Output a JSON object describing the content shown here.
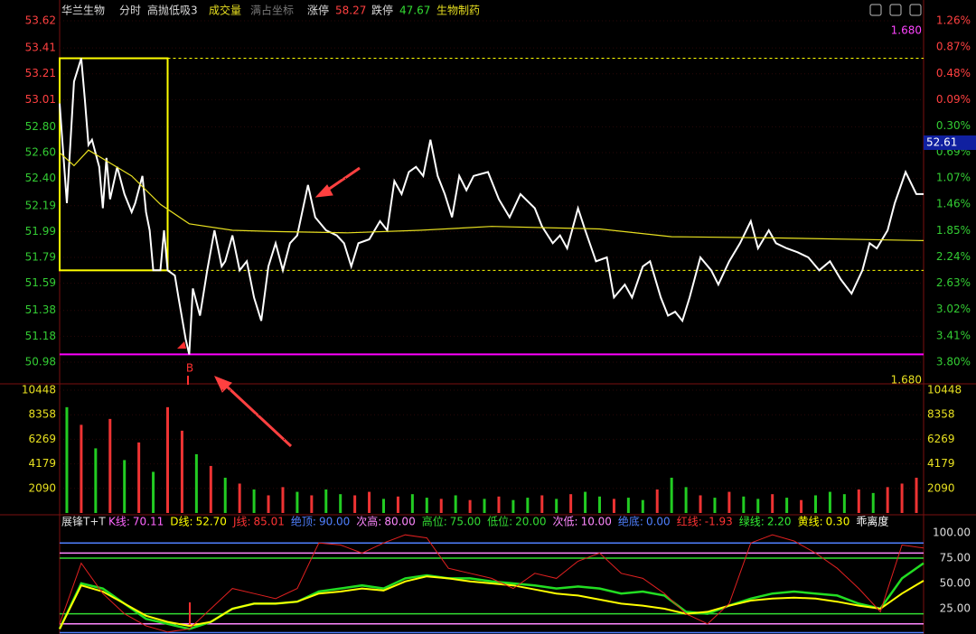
{
  "header": {
    "name": "华兰生物",
    "mode": "分时",
    "indicator": "高抛低吸3",
    "volume": "成交量",
    "coords": "满占坐标",
    "limit_up_label": "涨停",
    "limit_up": "58.27",
    "limit_down_label": "跌停",
    "limit_down": "47.67",
    "sector": "生物制药"
  },
  "chart_data": [
    {
      "type": "line",
      "xlim": [
        0,
        240
      ],
      "ylim": [
        50.98,
        53.62
      ],
      "yticks": [
        53.62,
        53.41,
        53.21,
        53.01,
        {
          "value": 52.8,
          "label": "52.80"
        },
        {
          "value": 52.6,
          "label": "52.60"
        },
        {
          "value": 52.4,
          "label": "52.40"
        },
        52.19,
        51.99,
        51.79,
        51.59,
        51.38,
        51.18,
        50.98
      ],
      "y2lim": [
        -3.8,
        1.26
      ],
      "y2ticks": [
        {
          "value": 1.26,
          "label": "1.26%"
        },
        {
          "value": 0.87,
          "label": "0.87%"
        },
        {
          "value": 0.48,
          "label": "0.48%"
        },
        {
          "value": 0.09,
          "label": "0.09%"
        },
        {
          "value": -0.3,
          "label": "0.30%"
        },
        {
          "value": -0.69,
          "label": "0.69%"
        },
        {
          "value": -1.07,
          "label": "1.07%"
        },
        {
          "value": -1.46,
          "label": "1.46%"
        },
        {
          "value": -1.85,
          "label": "1.85%"
        },
        {
          "value": -2.24,
          "label": "2.24%"
        },
        {
          "value": -2.63,
          "label": "2.63%"
        },
        {
          "value": -3.02,
          "label": "3.02%"
        },
        {
          "value": -3.41,
          "label": "3.41%"
        },
        {
          "value": -3.8,
          "label": "3.80%"
        }
      ],
      "series": [
        {
          "color": "#ffffff",
          "x": [
            0,
            2,
            4,
            6,
            7,
            8,
            9,
            11,
            12,
            13,
            14,
            16,
            18,
            20,
            21,
            23,
            24,
            25,
            26,
            28,
            29,
            30,
            32,
            33,
            35,
            36,
            37,
            39,
            41,
            43,
            45,
            46,
            48,
            50,
            52,
            54,
            56,
            58,
            60,
            62,
            64,
            66,
            69,
            71,
            74,
            77,
            79,
            81,
            83,
            86,
            89,
            91,
            93,
            95,
            97,
            99,
            101,
            103,
            105,
            107,
            109,
            111,
            113,
            115,
            119,
            122,
            125,
            128,
            132,
            134,
            137,
            139,
            141,
            144,
            146,
            149,
            152,
            154,
            157,
            159,
            162,
            164,
            167,
            169,
            171,
            173,
            175,
            178,
            181,
            183,
            186,
            189,
            192,
            194,
            197,
            199,
            202,
            205,
            208,
            211,
            214,
            217,
            220,
            223,
            225,
            227,
            230,
            232,
            235,
            238,
            240
          ],
          "values": [
            52.98,
            52.21,
            53.15,
            53.33,
            53.01,
            52.66,
            52.7,
            52.49,
            52.17,
            52.56,
            52.24,
            52.49,
            52.28,
            52.14,
            52.21,
            52.42,
            52.14,
            52.0,
            51.69,
            51.69,
            52.0,
            51.69,
            51.65,
            51.48,
            51.16,
            51.04,
            51.55,
            51.34,
            51.69,
            52.0,
            51.72,
            51.76,
            51.96,
            51.69,
            51.76,
            51.48,
            51.3,
            51.72,
            51.9,
            51.69,
            51.9,
            51.96,
            52.35,
            52.1,
            52.0,
            51.96,
            51.9,
            51.72,
            51.9,
            51.93,
            52.07,
            52.0,
            52.38,
            52.28,
            52.45,
            52.49,
            52.42,
            52.7,
            52.42,
            52.28,
            52.1,
            52.42,
            52.31,
            52.42,
            52.45,
            52.24,
            52.1,
            52.28,
            52.17,
            52.03,
            51.9,
            51.96,
            51.86,
            52.17,
            52.0,
            51.76,
            51.79,
            51.48,
            51.58,
            51.48,
            51.72,
            51.76,
            51.48,
            51.34,
            51.37,
            51.3,
            51.48,
            51.79,
            51.69,
            51.58,
            51.76,
            51.9,
            52.07,
            51.86,
            52.0,
            51.9,
            51.86,
            51.83,
            51.79,
            51.69,
            51.76,
            51.62,
            51.51,
            51.69,
            51.9,
            51.86,
            52.0,
            52.21,
            52.45,
            52.28,
            52.28
          ]
        },
        {
          "color": "#e8e020",
          "x": [
            0,
            4,
            8,
            14,
            20,
            28,
            36,
            48,
            60,
            80,
            100,
            120,
            150,
            170,
            200,
            240
          ],
          "values": [
            52.6,
            52.5,
            52.62,
            52.52,
            52.42,
            52.2,
            52.05,
            52.0,
            51.99,
            51.98,
            52.0,
            52.03,
            52.01,
            51.95,
            51.94,
            51.92
          ]
        }
      ],
      "box": {
        "x": [
          0,
          30
        ],
        "y": [
          51.69,
          53.33
        ],
        "color": "#ffff00"
      },
      "support": {
        "value": 51.04,
        "color": "#ff00ff"
      },
      "annotations": {
        "signal": "B",
        "ratio_top": "1.680",
        "ratio_bottom": "1.680",
        "price_tag": "52.61"
      }
    },
    {
      "type": "bar",
      "xlim": [
        0,
        240
      ],
      "ylim": [
        0,
        10448
      ],
      "yticks": [
        10448,
        8358,
        6269,
        4179,
        2090
      ],
      "values": [
        9000,
        7500,
        5500,
        8000,
        4500,
        6000,
        3500,
        9000,
        7000,
        5000,
        4000,
        3000,
        2500,
        2000,
        1500,
        2200,
        1800,
        1500,
        2000,
        1600,
        1500,
        1800,
        1200,
        1400,
        1600,
        1300,
        1200,
        1500,
        1100,
        1200,
        1400,
        1100,
        1300,
        1500,
        1200,
        1600,
        1800,
        1400,
        1200,
        1300,
        1100,
        2000,
        3000,
        2200,
        1500,
        1300,
        1800,
        1400,
        1200,
        1600,
        1300,
        1100,
        1500,
        1800,
        1600,
        2000,
        1700,
        2200,
        2500,
        3000
      ],
      "colors": [
        "#2c2",
        "#e33",
        "#2c2",
        "#e33",
        "#2c2",
        "#e33",
        "#2c2",
        "#e33",
        "#e33",
        "#2c2",
        "#e33",
        "#2c2",
        "#e33",
        "#2c2",
        "#e33",
        "#e33",
        "#2c2",
        "#e33",
        "#2c2",
        "#2c2",
        "#e33",
        "#e33",
        "#2c2",
        "#e33",
        "#2c2",
        "#2c2",
        "#e33",
        "#2c2",
        "#e33",
        "#2c2",
        "#e33",
        "#2c2",
        "#2c2",
        "#e33",
        "#2c2",
        "#e33",
        "#2c2",
        "#2c2",
        "#e33",
        "#2c2",
        "#2c2",
        "#e33",
        "#2c2",
        "#2c2",
        "#e33",
        "#2c2",
        "#e33",
        "#2c2",
        "#2c2",
        "#e33",
        "#2c2",
        "#e33",
        "#2c2",
        "#2c2",
        "#2c2",
        "#e33",
        "#2c2",
        "#e33",
        "#e33",
        "#e33"
      ]
    },
    {
      "type": "line",
      "title": "展锋T+T",
      "xlim": [
        0,
        240
      ],
      "ylim": [
        0,
        100
      ],
      "yticks": [
        {
          "value": 100,
          "label": "100.00"
        },
        {
          "value": 75,
          "label": "75.00"
        },
        {
          "value": 50,
          "label": "50.00"
        },
        {
          "value": 25,
          "label": "25.00"
        }
      ],
      "legend": [
        {
          "name": "K线:",
          "value": "70.11",
          "color": "#ff66ff"
        },
        {
          "name": "D线:",
          "value": "52.70",
          "color": "#ffff00"
        },
        {
          "name": "J线:",
          "value": "85.01",
          "color": "#ff3333"
        },
        {
          "name": "绝顶:",
          "value": "90.00",
          "color": "#5080ff",
          "level": true
        },
        {
          "name": "次高:",
          "value": "80.00",
          "color": "#ff88ff",
          "level": true
        },
        {
          "name": "高位:",
          "value": "75.00",
          "color": "#33dd33",
          "level": true
        },
        {
          "name": "低位:",
          "value": "20.00",
          "color": "#33dd33",
          "level": true
        },
        {
          "name": "次低:",
          "value": "10.00",
          "color": "#ff88ff",
          "level": true
        },
        {
          "name": "绝底:",
          "value": "0.00",
          "color": "#5080ff",
          "level": true
        },
        {
          "name": "红线:",
          "value": "-1.93",
          "color": "#ff3333"
        },
        {
          "name": "绿线:",
          "value": "2.20",
          "color": "#33ee33"
        },
        {
          "name": "黄线:",
          "value": "0.30",
          "color": "#ffff00"
        }
      ],
      "extra": "乖离度",
      "x": [
        0,
        6,
        12,
        18,
        24,
        30,
        36,
        42,
        48,
        54,
        60,
        66,
        72,
        78,
        84,
        90,
        96,
        102,
        108,
        114,
        120,
        126,
        132,
        138,
        144,
        150,
        156,
        162,
        168,
        174,
        180,
        186,
        192,
        198,
        204,
        210,
        216,
        222,
        228,
        234,
        240
      ],
      "series": [
        {
          "color": "#22dd22",
          "width": 2.5,
          "values": [
            5,
            50,
            45,
            30,
            15,
            10,
            5,
            12,
            25,
            30,
            30,
            32,
            42,
            45,
            48,
            45,
            55,
            58,
            55,
            55,
            52,
            50,
            48,
            45,
            47,
            45,
            40,
            42,
            38,
            22,
            20,
            28,
            35,
            40,
            42,
            40,
            38,
            30,
            25,
            55,
            70
          ]
        },
        {
          "color": "#ffff00",
          "width": 2,
          "values": [
            5,
            48,
            42,
            30,
            18,
            12,
            8,
            12,
            25,
            30,
            30,
            32,
            40,
            42,
            45,
            43,
            52,
            57,
            55,
            52,
            50,
            48,
            44,
            40,
            38,
            34,
            30,
            28,
            25,
            20,
            22,
            28,
            33,
            35,
            36,
            35,
            32,
            28,
            25,
            40,
            52.7
          ]
        },
        {
          "color": "#e02020",
          "width": 1,
          "values": [
            10,
            70,
            40,
            20,
            8,
            2,
            5,
            25,
            45,
            40,
            35,
            45,
            90,
            88,
            80,
            90,
            98,
            95,
            65,
            60,
            55,
            45,
            60,
            55,
            72,
            80,
            60,
            55,
            40,
            20,
            10,
            30,
            90,
            98,
            92,
            80,
            65,
            45,
            22,
            88,
            85
          ]
        }
      ]
    }
  ]
}
